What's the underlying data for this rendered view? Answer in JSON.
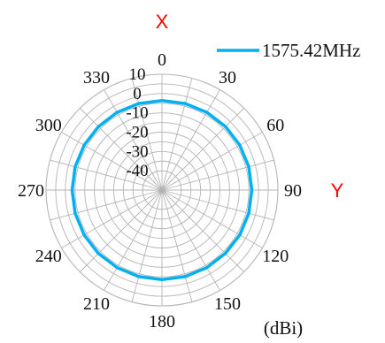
{
  "chart_data": {
    "type": "polar-line",
    "angular_unit": "degrees",
    "angle_ticks": [
      0,
      30,
      60,
      90,
      120,
      150,
      180,
      210,
      240,
      270,
      300,
      330
    ],
    "angle_tick_labels": [
      "0",
      "30",
      "60",
      "90",
      "120",
      "150",
      "180",
      "210",
      "240",
      "270",
      "300",
      "330"
    ],
    "radial_range": [
      -50,
      10
    ],
    "radial_ticks": [
      10,
      0,
      -10,
      -20,
      -30,
      -40
    ],
    "radial_tick_labels": [
      "10",
      "0",
      "-10",
      "-20",
      "-30",
      "-40"
    ],
    "radial_gridlines": [
      10,
      5,
      0,
      -5,
      -10,
      -15,
      -20,
      -25,
      -30,
      -35,
      -40
    ],
    "angular_grid_step": 15,
    "unit_label": "(dBi)",
    "axis_labels": {
      "x": "X",
      "y": "Y"
    },
    "axis_label_color": "#ff0000",
    "legend": {
      "position": "top-right"
    },
    "series": [
      {
        "name": "1575.42MHz",
        "color": "#00b0f0",
        "angles": [
          0,
          15,
          30,
          45,
          60,
          75,
          90,
          105,
          120,
          135,
          150,
          165,
          180,
          195,
          210,
          225,
          240,
          255,
          270,
          285,
          300,
          315,
          330,
          345
        ],
        "values": [
          -3.6,
          -3.6,
          -3.5,
          -3.5,
          -3.5,
          -3.5,
          -3.5,
          -3.5,
          -3.5,
          -3.6,
          -3.6,
          -3.6,
          -3.6,
          -3.6,
          -3.6,
          -3.5,
          -3.5,
          -3.5,
          -3.5,
          -3.5,
          -3.5,
          -3.5,
          -3.5,
          -3.6
        ]
      }
    ]
  }
}
